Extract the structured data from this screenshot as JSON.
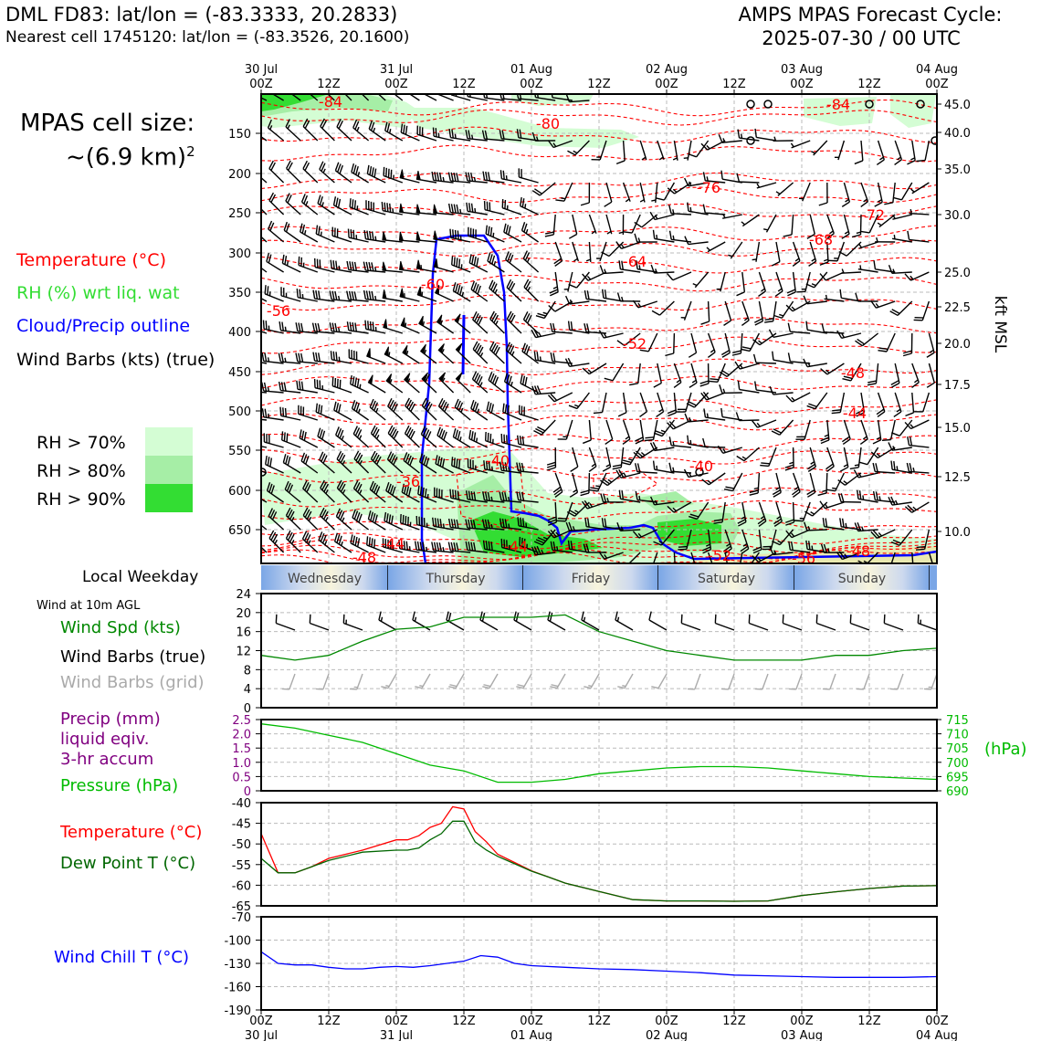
{
  "header": {
    "station": "DML FD83: lat/lon = (-83.3333, 20.2833)",
    "nearest": "Nearest cell 1745120: lat/lon = (-83.3526, 20.1600)",
    "cycle_line1": "AMPS MPAS Forecast Cycle:",
    "cycle_line2": "2025-07-30 / 00 UTC"
  },
  "cell": {
    "line1": "MPAS cell size:",
    "line2": "~(6.9 km)",
    "sup": "2"
  },
  "legend_upper": {
    "temperature": "Temperature (°C)",
    "rh": "RH (%) wrt liq. wat",
    "cloud": "Cloud/Precip outline",
    "barbs": "Wind Barbs (kts) (true)",
    "rh70": "RH > 70%",
    "rh80": "RH > 80%",
    "rh90": "RH > 90%"
  },
  "legend_lower": {
    "weekday_title": "Local Weekday",
    "wind_note": "Wind at 10m AGL",
    "wind_spd": "Wind Spd (kts)",
    "barbs_true": "Wind Barbs (true)",
    "barbs_grid": "Wind Barbs (grid)",
    "precip1": "Precip (mm)",
    "precip2": "liquid eqiv.",
    "precip3": "3-hr accum",
    "pressure": "Pressure (hPa)",
    "pressure_unit": "(hPa)",
    "temp": "Temperature (°C)",
    "dew": "Dew Point T (°C)",
    "chill": "Wind Chill T (°C)"
  },
  "colors": {
    "temp": "#ff0000",
    "rh_green": "#33dd33",
    "cloud": "#0000ff",
    "wind_green": "#008800",
    "precip": "#800080",
    "pressure": "#00bb00",
    "dew": "#006600",
    "grid_barb": "#aaaaaa",
    "rh70": "#d4fdd4",
    "rh80": "#a6eea6",
    "rh90": "#33dd33"
  },
  "chart_data": [
    {
      "type": "time-height cross-section",
      "x_top_ticks": [
        {
          "l1": "30 Jul",
          "l2": "00Z"
        },
        {
          "l1": "",
          "l2": "12Z"
        },
        {
          "l1": "31 Jul",
          "l2": "00Z"
        },
        {
          "l1": "",
          "l2": "12Z"
        },
        {
          "l1": "01 Aug",
          "l2": "00Z"
        },
        {
          "l1": "",
          "l2": "12Z"
        },
        {
          "l1": "02 Aug",
          "l2": "00Z"
        },
        {
          "l1": "",
          "l2": "12Z"
        },
        {
          "l1": "03 Aug",
          "l2": "00Z"
        },
        {
          "l1": "",
          "l2": "12Z"
        },
        {
          "l1": "04 Aug",
          "l2": "00Z"
        }
      ],
      "pressure_ticks": [
        "150",
        "200",
        "250",
        "300",
        "350",
        "400",
        "450",
        "500",
        "550",
        "600",
        "650"
      ],
      "kft_ticks": [
        "45.0",
        "40.0",
        "35.0",
        "30.0",
        "25.0",
        "22.5",
        "20.0",
        "17.5",
        "15.0",
        "12.5",
        "10.0"
      ],
      "right_axis_label": "kft MSL",
      "temperature_labels": [
        "-84",
        "-80",
        "-76",
        "-72",
        "-68",
        "-64",
        "-60",
        "-56",
        "-52",
        "-48",
        "-44",
        "-40",
        "-40",
        "-36",
        "-44",
        "-44",
        "-48",
        "-52",
        "-56",
        "-48",
        "-84"
      ]
    },
    {
      "type": "weekday-bar",
      "days": [
        "Wednesday",
        "Thursday",
        "Friday",
        "Saturday",
        "Sunday"
      ]
    },
    {
      "type": "line",
      "name": "wind",
      "yticks": [
        "24",
        "20",
        "16",
        "12",
        "8",
        "4",
        "0"
      ],
      "ylim": [
        0,
        24
      ],
      "x_hours": [
        0,
        6,
        12,
        18,
        24,
        30,
        36,
        42,
        48,
        54,
        60,
        66,
        72,
        78,
        84,
        90,
        96,
        102,
        108,
        114,
        120
      ],
      "wind_speed": [
        11,
        10,
        11,
        14,
        16.5,
        17,
        19,
        19,
        19,
        19.5,
        16,
        14,
        12,
        11,
        10,
        10,
        10,
        11,
        11,
        12,
        12.5
      ],
      "barb_true_dir": [
        300,
        290,
        290,
        290,
        300,
        300,
        300,
        300,
        300,
        300,
        300,
        300,
        300,
        290,
        290,
        290,
        290,
        290,
        290,
        290,
        290
      ],
      "barb_grid_dir": [
        210,
        200,
        200,
        200,
        210,
        210,
        210,
        210,
        210,
        210,
        210,
        210,
        210,
        200,
        200,
        200,
        200,
        200,
        200,
        200,
        200
      ]
    },
    {
      "type": "line",
      "name": "precip-pressure",
      "precip_ticks": [
        "2.5",
        "2.0",
        "1.5",
        "1.0",
        "0.5",
        "0"
      ],
      "pressure_ticks": [
        "715",
        "710",
        "705",
        "700",
        "695",
        "690"
      ],
      "ylim_precip": [
        0,
        2.5
      ],
      "ylim_pressure": [
        690,
        715
      ],
      "x_hours": [
        0,
        6,
        12,
        18,
        24,
        30,
        36,
        42,
        48,
        54,
        60,
        66,
        72,
        78,
        84,
        90,
        96,
        102,
        108,
        114,
        120
      ],
      "pressure": [
        713.5,
        712,
        709.5,
        707,
        703,
        699,
        697,
        693,
        693,
        694,
        696,
        697,
        698,
        698.5,
        698.5,
        698,
        697,
        696,
        695,
        694.5,
        694
      ],
      "precip": [
        0,
        0,
        0,
        0,
        0,
        0,
        0,
        0,
        0,
        0,
        0,
        0,
        0,
        0,
        0,
        0,
        0,
        0,
        0,
        0,
        0
      ]
    },
    {
      "type": "line",
      "name": "temperature-dewpoint",
      "yticks": [
        "-40",
        "-45",
        "-50",
        "-55",
        "-60",
        "-65"
      ],
      "ylim": [
        -65,
        -40
      ],
      "x_hours": [
        0,
        3,
        6,
        9,
        12,
        18,
        24,
        26,
        28,
        30,
        32,
        34,
        36,
        38,
        40,
        42,
        45,
        48,
        51,
        54,
        60,
        66,
        72,
        78,
        84,
        90,
        96,
        102,
        108,
        114,
        120
      ],
      "temperature": [
        -47.5,
        -57,
        -57,
        -55.5,
        -53.5,
        -51.5,
        -49,
        -49,
        -48,
        -46,
        -45,
        -41,
        -41.5,
        -47,
        -49.5,
        -52.5,
        -54.5,
        -56.5,
        -58,
        -59.5,
        -61.5,
        -63.5,
        -63.8,
        -63.8,
        -63.9,
        -63.8,
        -62.5,
        -61.6,
        -60.8,
        -60.2,
        -60.1
      ],
      "dewpoint": [
        -53.5,
        -57,
        -57,
        -55.5,
        -54,
        -52,
        -51.5,
        -51.5,
        -51,
        -49,
        -47.5,
        -44.5,
        -44.5,
        -49.5,
        -51.5,
        -53,
        -54.8,
        -56.6,
        -58,
        -59.5,
        -61.5,
        -63.5,
        -63.8,
        -63.8,
        -63.9,
        -63.8,
        -62.5,
        -61.6,
        -60.8,
        -60.2,
        -60.1
      ]
    },
    {
      "type": "line",
      "name": "wind-chill",
      "yticks": [
        "-70",
        "-100",
        "-130",
        "-160",
        "-190"
      ],
      "ylim": [
        -190,
        -70
      ],
      "x_hours": [
        0,
        3,
        6,
        9,
        12,
        15,
        18,
        21,
        24,
        27,
        30,
        33,
        36,
        39,
        42,
        45,
        48,
        54,
        60,
        66,
        72,
        78,
        84,
        90,
        96,
        102,
        108,
        114,
        120
      ],
      "wind_chill": [
        -115,
        -130,
        -132,
        -132,
        -135,
        -137,
        -137,
        -135,
        -134,
        -135,
        -133,
        -130,
        -127,
        -120,
        -122,
        -130,
        -133,
        -135,
        -137,
        -138,
        -140,
        -142,
        -145,
        -146,
        -147,
        -148,
        -148,
        -148,
        -147
      ],
      "x_bottom_ticks": [
        {
          "l1": "00Z",
          "l2": "30 Jul"
        },
        {
          "l1": "12Z",
          "l2": ""
        },
        {
          "l1": "00Z",
          "l2": "31 Jul"
        },
        {
          "l1": "12Z",
          "l2": ""
        },
        {
          "l1": "00Z",
          "l2": "01 Aug"
        },
        {
          "l1": "12Z",
          "l2": ""
        },
        {
          "l1": "00Z",
          "l2": "02 Aug"
        },
        {
          "l1": "12Z",
          "l2": ""
        },
        {
          "l1": "00Z",
          "l2": "03 Aug"
        },
        {
          "l1": "12Z",
          "l2": ""
        },
        {
          "l1": "00Z",
          "l2": "04 Aug"
        }
      ]
    }
  ]
}
